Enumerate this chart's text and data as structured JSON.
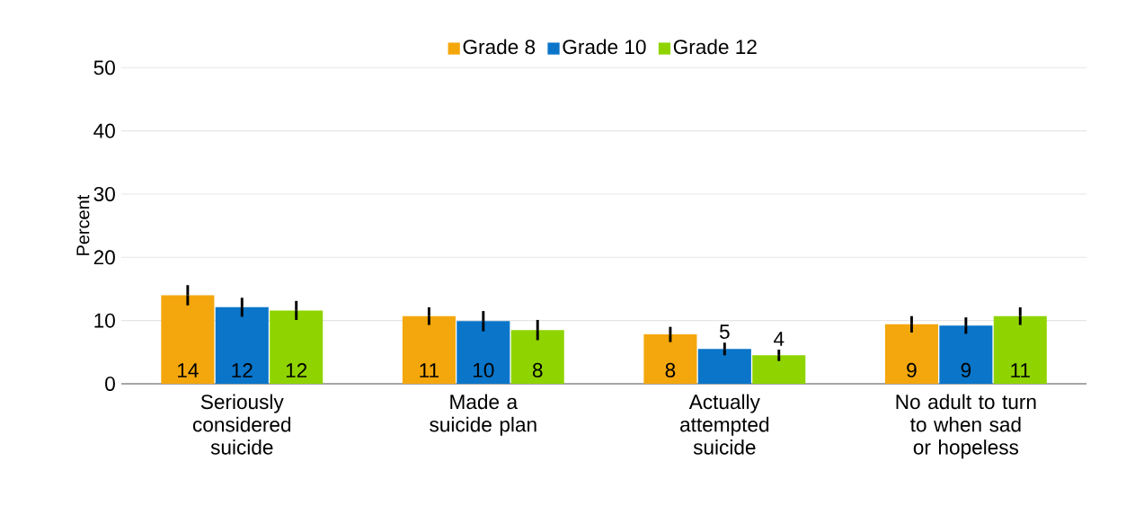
{
  "chart_data": {
    "type": "bar",
    "ylabel": "Percent",
    "categories": [
      "Seriously considered suicide",
      "Made a suicide plan",
      "Actually attempted suicide",
      "No adult to turn to when sad or hopeless"
    ],
    "series": [
      {
        "name": "Grade 8",
        "color": "#f4a70c",
        "values": [
          14.0,
          10.7,
          7.8,
          9.4
        ],
        "errors": [
          1.6,
          1.4,
          1.2,
          1.3
        ],
        "value_labels": [
          "14",
          "11",
          "8",
          "9"
        ]
      },
      {
        "name": "Grade 10",
        "color": "#0a75c9",
        "values": [
          12.1,
          9.9,
          5.5,
          9.2
        ],
        "errors": [
          1.5,
          1.6,
          1.0,
          1.3
        ],
        "value_labels": [
          "12",
          "10",
          "5",
          "9"
        ]
      },
      {
        "name": "Grade 12",
        "color": "#8fd400",
        "values": [
          11.6,
          8.5,
          4.5,
          10.7
        ],
        "errors": [
          1.5,
          1.6,
          0.9,
          1.4
        ],
        "value_labels": [
          "12",
          "8",
          "4",
          "11"
        ]
      }
    ],
    "ylim": [
      0,
      50
    ],
    "yticks": [
      0,
      10,
      20,
      30,
      40,
      50
    ],
    "grid": "y",
    "legend": "top"
  }
}
